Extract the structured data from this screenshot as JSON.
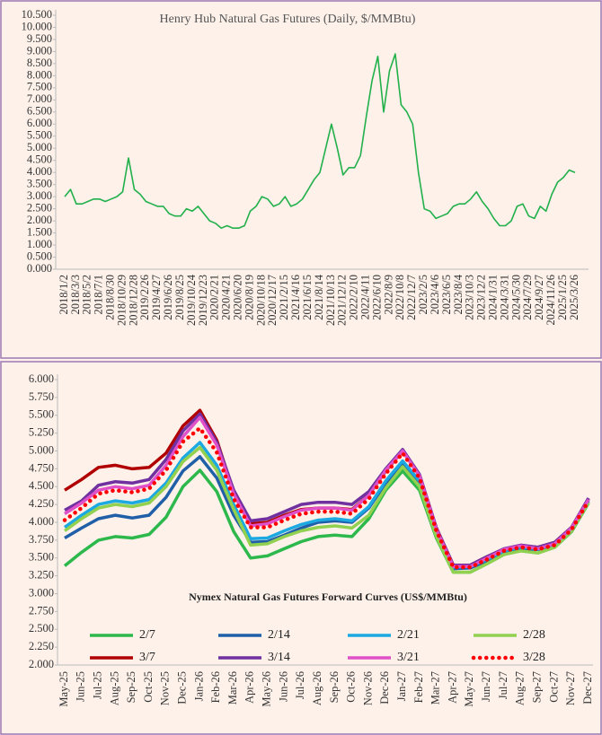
{
  "chart_data": [
    {
      "type": "line",
      "title": "Henry Hub Natural Gas Futures (Daily,  $/MMBtu)",
      "color": "#22b04b",
      "categories": [
        "2018/1/2",
        null,
        "2018/3/3",
        null,
        "2018/5/2",
        null,
        "2018/7/1",
        null,
        "2018/8/30",
        null,
        "2018/10/29",
        null,
        "2018/12/28",
        null,
        "2019/2/26",
        null,
        "2019/4/27",
        null,
        "2019/6/26",
        null,
        "2019/8/25",
        null,
        "2019/10/24",
        null,
        "2019/12/23",
        null,
        "2020/2/21",
        null,
        "2020/4/21",
        null,
        "2020/6/20",
        null,
        "2020/8/19",
        null,
        "2020/10/18",
        null,
        "2020/12/17",
        null,
        "2021/2/15",
        null,
        "2021/4/16",
        null,
        "2021/6/15",
        null,
        "2021/8/14",
        null,
        "2021/10/13",
        null,
        "2021/12/12",
        null,
        "2022/2/10",
        null,
        "2022/4/11",
        null,
        "2022/6/10",
        null,
        "2022/8/9",
        null,
        "2022/10/8",
        null,
        "2022/12/7",
        null,
        "2023/2/5",
        null,
        "2023/4/6",
        null,
        "2023/6/5",
        null,
        "2023/8/4",
        null,
        "2023/10/3",
        null,
        "2023/12/2",
        null,
        "2024/1/31",
        null,
        "2024/3/31",
        null,
        "2024/5/30",
        null,
        "2024/7/29",
        null,
        "2024/9/27",
        null,
        "2024/11/26",
        null,
        "2025/1/25",
        null,
        "2025/3/26"
      ],
      "values": [
        3.0,
        3.3,
        2.7,
        2.7,
        2.8,
        2.9,
        2.9,
        2.8,
        2.9,
        3.0,
        3.2,
        4.6,
        3.3,
        3.1,
        2.8,
        2.7,
        2.6,
        2.6,
        2.3,
        2.2,
        2.2,
        2.5,
        2.4,
        2.6,
        2.3,
        2.0,
        1.9,
        1.7,
        1.8,
        1.7,
        1.7,
        1.8,
        2.4,
        2.6,
        3.0,
        2.9,
        2.6,
        2.7,
        3.0,
        2.6,
        2.7,
        2.9,
        3.3,
        3.7,
        4.0,
        5.0,
        6.0,
        5.0,
        3.9,
        4.2,
        4.2,
        4.7,
        6.3,
        7.8,
        8.8,
        6.5,
        8.2,
        8.9,
        6.8,
        6.5,
        6.0,
        4.0,
        2.5,
        2.4,
        2.1,
        2.2,
        2.3,
        2.6,
        2.7,
        2.7,
        2.9,
        3.2,
        2.8,
        2.5,
        2.1,
        1.8,
        1.8,
        2.0,
        2.6,
        2.7,
        2.2,
        2.1,
        2.6,
        2.4,
        3.1,
        3.6,
        3.8,
        4.1,
        4.0
      ],
      "ylim": [
        0,
        10.5
      ],
      "yticks": [
        {
          "value": 0,
          "label": "0.000"
        },
        {
          "value": 0.5,
          "label": "0.500"
        },
        {
          "value": 1,
          "label": "1.000"
        },
        {
          "value": 1.5,
          "label": "1.500"
        },
        {
          "value": 2,
          "label": "2.000"
        },
        {
          "value": 2.5,
          "label": "2.500"
        },
        {
          "value": 3,
          "label": "3.000"
        },
        {
          "value": 3.5,
          "label": "3.500"
        },
        {
          "value": 4,
          "label": "4.000"
        },
        {
          "value": 4.5,
          "label": "4.500"
        },
        {
          "value": 5,
          "label": "5.000"
        },
        {
          "value": 5.5,
          "label": "5.500"
        },
        {
          "value": 6,
          "label": "6.000"
        },
        {
          "value": 6.5,
          "label": "6.500"
        },
        {
          "value": 7,
          "label": "7.000"
        },
        {
          "value": 7.5,
          "label": "7.500"
        },
        {
          "value": 8,
          "label": "8.000"
        },
        {
          "value": 8.5,
          "label": "8.500"
        },
        {
          "value": 9,
          "label": "9.000"
        },
        {
          "value": 9.5,
          "label": "9.500"
        },
        {
          "value": 10,
          "label": "10.000"
        },
        {
          "value": 10.5,
          "label": "10.500"
        }
      ]
    },
    {
      "type": "line",
      "title": "Nymex Natural Gas Futures Forward  Curves (US$/MMBtu)",
      "legend": "bottom",
      "categories": [
        "May-25",
        "Jun-25",
        "Jul-25",
        "Aug-25",
        "Sep-25",
        "Oct-25",
        "Nov-25",
        "Dec-25",
        "Jan-26",
        "Feb-26",
        "Mar-26",
        "Apr-26",
        "May-26",
        "Jun-26",
        "Jul-26",
        "Aug-26",
        "Sep-26",
        "Oct-26",
        "Nov-26",
        "Dec-26",
        "Jan-27",
        "Feb-27",
        "Mar-27",
        "Apr-27",
        "May-27",
        "Jun-27",
        "Jul-27",
        "Aug-27",
        "Sep-27",
        "Oct-27",
        "Nov-27",
        "Dec-27"
      ],
      "series": [
        {
          "name": "2/7",
          "color": "#2db84c",
          "values": [
            3.39,
            3.58,
            3.75,
            3.8,
            3.78,
            3.83,
            4.07,
            4.5,
            4.73,
            4.43,
            3.87,
            3.5,
            3.53,
            3.63,
            3.73,
            3.8,
            3.82,
            3.8,
            4.05,
            4.45,
            4.72,
            4.45,
            3.78,
            3.3,
            3.3,
            3.42,
            3.55,
            3.6,
            3.57,
            3.65,
            3.87,
            4.27
          ]
        },
        {
          "name": "2/14",
          "color": "#1f5fa8",
          "values": [
            3.78,
            3.92,
            4.05,
            4.1,
            4.06,
            4.1,
            4.35,
            4.72,
            4.92,
            4.62,
            4.1,
            3.72,
            3.73,
            3.82,
            3.92,
            4.0,
            4.02,
            4.0,
            4.2,
            4.55,
            4.82,
            4.55,
            3.85,
            3.35,
            3.36,
            3.46,
            3.58,
            3.63,
            3.62,
            3.68,
            3.9,
            4.3
          ]
        },
        {
          "name": "2/21",
          "color": "#1ca8e0",
          "values": [
            3.93,
            4.1,
            4.25,
            4.3,
            4.27,
            4.32,
            4.55,
            4.9,
            5.12,
            4.8,
            4.25,
            3.77,
            3.78,
            3.88,
            3.97,
            4.03,
            4.05,
            4.02,
            4.22,
            4.58,
            4.86,
            4.58,
            3.88,
            3.37,
            3.38,
            3.48,
            3.6,
            3.65,
            3.63,
            3.7,
            3.92,
            4.32
          ]
        },
        {
          "name": "2/28",
          "color": "#92d050",
          "values": [
            3.88,
            4.05,
            4.2,
            4.25,
            4.22,
            4.27,
            4.5,
            4.85,
            5.05,
            4.73,
            4.18,
            3.68,
            3.7,
            3.8,
            3.88,
            3.93,
            3.95,
            3.92,
            4.1,
            4.48,
            4.78,
            4.5,
            3.8,
            3.3,
            3.3,
            3.42,
            3.55,
            3.6,
            3.57,
            3.65,
            3.88,
            4.28
          ]
        },
        {
          "name": "3/7",
          "color": "#b00000",
          "values": [
            4.45,
            4.6,
            4.77,
            4.8,
            4.75,
            4.77,
            4.97,
            5.35,
            5.57,
            5.15,
            4.42,
            3.98,
            4.0,
            4.1,
            4.18,
            4.2,
            4.2,
            4.18,
            4.38,
            4.72,
            5.0,
            4.65,
            3.92,
            3.4,
            3.4,
            3.52,
            3.62,
            3.67,
            3.65,
            3.72,
            3.93,
            4.33
          ]
        },
        {
          "name": "3/14",
          "color": "#7030a0",
          "values": [
            4.17,
            4.3,
            4.52,
            4.57,
            4.55,
            4.6,
            4.88,
            5.28,
            5.52,
            5.12,
            4.45,
            4.02,
            4.05,
            4.15,
            4.25,
            4.28,
            4.28,
            4.25,
            4.43,
            4.75,
            5.02,
            4.67,
            3.92,
            3.4,
            3.4,
            3.52,
            3.63,
            3.68,
            3.65,
            3.72,
            3.93,
            4.34
          ]
        },
        {
          "name": "3/21",
          "color": "#e050c8",
          "values": [
            4.12,
            4.27,
            4.45,
            4.5,
            4.47,
            4.52,
            4.8,
            5.2,
            5.47,
            5.08,
            4.4,
            3.95,
            3.98,
            4.08,
            4.17,
            4.2,
            4.2,
            4.17,
            4.38,
            4.73,
            5.0,
            4.65,
            3.9,
            3.38,
            3.38,
            3.5,
            3.62,
            3.67,
            3.63,
            3.7,
            3.92,
            4.32
          ]
        },
        {
          "name": "3/28",
          "color": "#ff0000",
          "dash": "dotted",
          "values": [
            4.03,
            4.2,
            4.4,
            4.45,
            4.42,
            4.47,
            4.73,
            5.13,
            5.32,
            4.98,
            4.33,
            3.93,
            3.93,
            4.03,
            4.12,
            4.15,
            4.15,
            4.12,
            4.33,
            4.68,
            4.97,
            4.62,
            3.88,
            3.37,
            3.37,
            3.48,
            3.6,
            3.65,
            3.62,
            3.68,
            3.9,
            4.3
          ]
        }
      ],
      "ylim": [
        2,
        6
      ],
      "yticks": [
        {
          "value": 2,
          "label": "2.000"
        },
        {
          "value": 2.25,
          "label": "2.250"
        },
        {
          "value": 2.5,
          "label": "2.500"
        },
        {
          "value": 2.75,
          "label": "2.750"
        },
        {
          "value": 3,
          "label": "3.000"
        },
        {
          "value": 3.25,
          "label": "3.250"
        },
        {
          "value": 3.5,
          "label": "3.500"
        },
        {
          "value": 3.75,
          "label": "3.750"
        },
        {
          "value": 4,
          "label": "4.000"
        },
        {
          "value": 4.25,
          "label": "4.250"
        },
        {
          "value": 4.5,
          "label": "4.500"
        },
        {
          "value": 4.75,
          "label": "4.750"
        },
        {
          "value": 5,
          "label": "5.000"
        },
        {
          "value": 5.25,
          "label": "5.250"
        },
        {
          "value": 5.5,
          "label": "5.500"
        },
        {
          "value": 5.75,
          "label": "5.750"
        },
        {
          "value": 6,
          "label": "6.000"
        }
      ]
    }
  ]
}
